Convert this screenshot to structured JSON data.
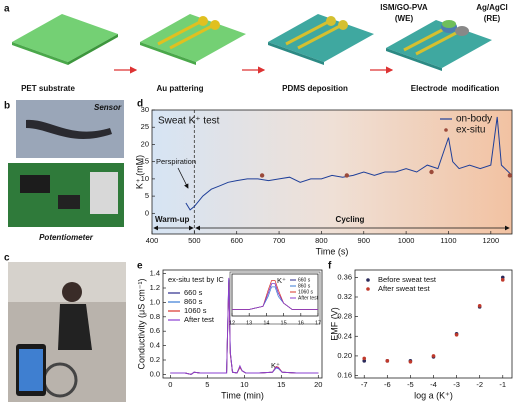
{
  "figure": {
    "panel_labels": [
      "a",
      "b",
      "c",
      "d",
      "e",
      "f"
    ],
    "steps": [
      "PET substrate",
      "Au pattering",
      "PDMS deposition",
      "Electrode  modification"
    ],
    "electrodes": [
      [
        "ISM/GO-PVA",
        "(WE)"
      ],
      [
        "Ag/AgCl",
        "(RE)"
      ]
    ],
    "photo_labels": [
      "Sensor",
      "Potentiometer"
    ]
  },
  "chart_data": [
    {
      "type": "line",
      "title": "Sweat K⁺ test",
      "x_label": "Time (s)",
      "y_label": "K⁺ (mM)",
      "xlim": [
        400,
        1250
      ],
      "xticks": [
        400,
        500,
        600,
        700,
        800,
        900,
        1000,
        1100,
        1200
      ],
      "ylim": [
        -6,
        30
      ],
      "yticks": [
        0,
        5,
        10,
        15,
        20,
        25,
        30
      ],
      "annotations": [
        "Perspiration",
        "Warm-up",
        "Cycling"
      ],
      "series": [
        {
          "name": "on-body",
          "style": "line",
          "color": "#1f3f99",
          "x": [
            480,
            490,
            500,
            520,
            540,
            560,
            580,
            600,
            625,
            650,
            675,
            700,
            725,
            750,
            775,
            800,
            825,
            850,
            875,
            900,
            925,
            950,
            975,
            1000,
            1025,
            1050,
            1075,
            1100,
            1110,
            1125,
            1150,
            1175,
            1200,
            1215,
            1225,
            1250
          ],
          "values": [
            3,
            1,
            2,
            5,
            7,
            8,
            9,
            9.5,
            10,
            10,
            9.5,
            10,
            10.5,
            9,
            10,
            10,
            11,
            10.5,
            11,
            12,
            11,
            12,
            12,
            13,
            12,
            14,
            13,
            22,
            15,
            13,
            14,
            13,
            14,
            28,
            14,
            11
          ]
        },
        {
          "name": "ex-situ",
          "style": "points",
          "color": "#9b4a3a",
          "x": [
            660,
            860,
            1060,
            1245
          ],
          "values": [
            11,
            11,
            12,
            11
          ]
        }
      ]
    },
    {
      "type": "line",
      "title": "ex-situ test by IC",
      "x_label": "Time (min)",
      "y_label": "Conductivity (μS cm⁻¹)",
      "xlim": [
        -1,
        20.5
      ],
      "xticks": [
        0,
        5,
        10,
        15,
        20
      ],
      "ylim": [
        -0.05,
        1.45
      ],
      "yticks": [
        {
          "value": 0,
          "label": "0.0"
        },
        0.2,
        0.4,
        0.6,
        0.8,
        {
          "value": 1,
          "label": "1.0"
        },
        1.2,
        1.4
      ],
      "annotations": [
        "K⁺"
      ],
      "x": [
        0,
        2,
        2.8,
        3.2,
        4,
        7.6,
        7.9,
        8.1,
        8.4,
        9,
        9.4,
        9.7,
        10.2,
        12,
        13.8,
        14.3,
        14.6,
        15.1,
        17,
        20
      ],
      "series": [
        {
          "name": "660 s",
          "color": "#2b2b8c",
          "values": [
            0.02,
            0.02,
            0,
            0.03,
            0.02,
            0.02,
            1.32,
            0.3,
            0.03,
            0.02,
            0.1,
            0.05,
            0.02,
            0.02,
            0.03,
            0.1,
            0.09,
            0.03,
            0.02,
            0.02
          ]
        },
        {
          "name": "860 s",
          "color": "#3a7bd5",
          "values": [
            0.02,
            0.02,
            0,
            0.03,
            0.02,
            0.02,
            1.3,
            0.3,
            0.03,
            0.02,
            0.11,
            0.05,
            0.02,
            0.02,
            0.03,
            0.09,
            0.08,
            0.03,
            0.02,
            0.02
          ]
        },
        {
          "name": "1060 s",
          "color": "#d9342b",
          "values": [
            0.02,
            0.02,
            0,
            0.03,
            0.02,
            0.02,
            1.28,
            0.28,
            0.03,
            0.02,
            0.1,
            0.05,
            0.02,
            0.02,
            0.03,
            0.11,
            0.1,
            0.03,
            0.02,
            0.02
          ]
        },
        {
          "name": "After test",
          "color": "#8a3fd1",
          "values": [
            0.02,
            0.02,
            0,
            0.03,
            0.02,
            0.02,
            1.34,
            0.31,
            0.03,
            0.02,
            0.12,
            0.05,
            0.02,
            0.02,
            0.03,
            0.1,
            0.09,
            0.03,
            0.02,
            0.02
          ]
        }
      ]
    },
    {
      "type": "line",
      "xlim": [
        12,
        17
      ],
      "xticks": [
        12,
        13,
        14,
        15,
        16,
        17
      ],
      "ylim": [
        0,
        0.13
      ],
      "annotations": [
        "K⁺"
      ],
      "x": [
        12,
        13,
        13.8,
        14.1,
        14.3,
        14.5,
        14.7,
        15,
        15.5,
        17
      ],
      "series": [
        {
          "values": [
            0.02,
            0.02,
            0.03,
            0.07,
            0.1,
            0.1,
            0.07,
            0.04,
            0.02,
            0.02
          ]
        },
        {
          "values": [
            0.02,
            0.02,
            0.03,
            0.06,
            0.09,
            0.09,
            0.06,
            0.04,
            0.02,
            0.02
          ]
        },
        {
          "values": [
            0.02,
            0.02,
            0.03,
            0.08,
            0.11,
            0.11,
            0.08,
            0.04,
            0.02,
            0.02
          ]
        },
        {
          "values": [
            0.02,
            0.02,
            0.03,
            0.07,
            0.1,
            0.1,
            0.07,
            0.04,
            0.02,
            0.02
          ]
        }
      ]
    },
    {
      "type": "scatter",
      "x_label": "log a (K⁺)",
      "y_label": "EMF (V)",
      "xlim": [
        -7.4,
        -0.6
      ],
      "xticks": [
        -7,
        -6,
        -5,
        -4,
        -3,
        -2,
        -1
      ],
      "ylim": [
        0.155,
        0.375
      ],
      "yticks": [
        0.16,
        {
          "value": 0.2,
          "label": "0.20"
        },
        0.24,
        0.28,
        0.32,
        0.36
      ],
      "x": [
        -7,
        -6,
        -5,
        -4,
        -3,
        -2,
        -1
      ],
      "series": [
        {
          "name": "Before sweat test",
          "color": "#2a2a5a",
          "values": [
            0.19,
            0.19,
            0.19,
            0.198,
            0.245,
            0.3,
            0.36
          ]
        },
        {
          "name": "After sweat test",
          "color": "#c0392b",
          "values": [
            0.195,
            0.19,
            0.188,
            0.2,
            0.243,
            0.302,
            0.355
          ]
        }
      ]
    }
  ]
}
